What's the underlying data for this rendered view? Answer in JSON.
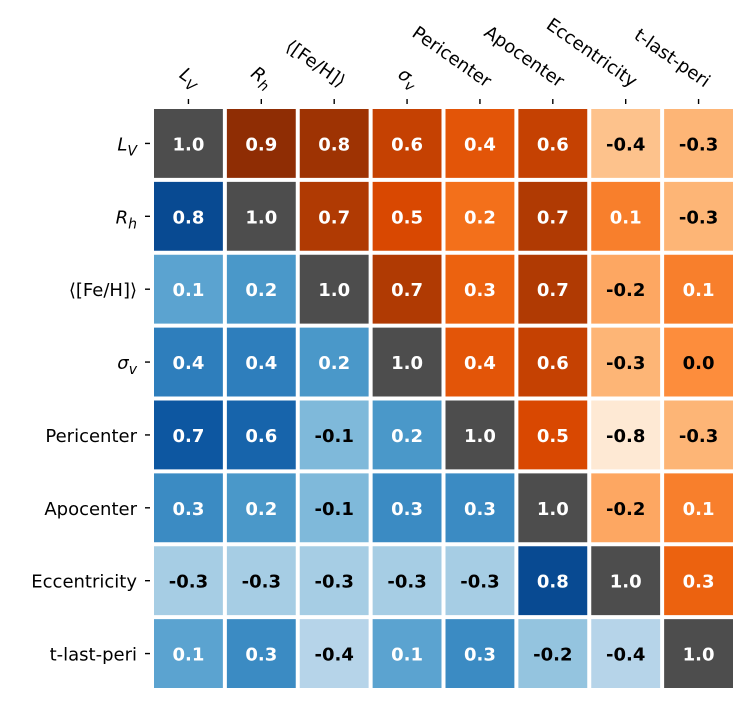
{
  "chart_data": {
    "type": "heatmap",
    "title": "",
    "labels": [
      {
        "main": "L",
        "sub": "V"
      },
      {
        "main": "R",
        "sub": "h"
      },
      {
        "main": "⟨[Fe/H]⟩",
        "sub": ""
      },
      {
        "main": "σ",
        "sub": "v"
      },
      {
        "main": "Pericenter",
        "sub": ""
      },
      {
        "main": "Apocenter",
        "sub": ""
      },
      {
        "main": "Eccentricity",
        "sub": ""
      },
      {
        "main": "t-last-peri",
        "sub": ""
      }
    ],
    "cells": [
      [
        "1.0",
        "0.9",
        "0.8",
        "0.6",
        "0.4",
        "0.6",
        "-0.4",
        "-0.3"
      ],
      [
        "0.8",
        "1.0",
        "0.7",
        "0.5",
        "0.2",
        "0.7",
        "0.1",
        "-0.3"
      ],
      [
        "0.1",
        "0.2",
        "1.0",
        "0.7",
        "0.3",
        "0.7",
        "-0.2",
        "0.1"
      ],
      [
        "0.4",
        "0.4",
        "0.2",
        "1.0",
        "0.4",
        "0.6",
        "-0.3",
        "0.0"
      ],
      [
        "0.7",
        "0.6",
        "-0.1",
        "0.2",
        "1.0",
        "0.5",
        "-0.8",
        "-0.3"
      ],
      [
        "0.3",
        "0.2",
        "-0.1",
        "0.3",
        "0.3",
        "1.0",
        "-0.2",
        "0.1"
      ],
      [
        "-0.3",
        "-0.3",
        "-0.3",
        "-0.3",
        "-0.3",
        "0.8",
        "1.0",
        "0.3"
      ],
      [
        "0.1",
        "0.3",
        "-0.4",
        "0.1",
        "0.3",
        "-0.2",
        "-0.4",
        "1.0"
      ]
    ],
    "upper_triangle": "orange colormap",
    "lower_triangle": "blue colormap",
    "diagonal": "dark gray",
    "value_range": [
      -1,
      1
    ]
  },
  "colors": {
    "diagonal": "#4d4d4d",
    "text_light": "#ffffff",
    "text_dark": "#000000",
    "axis": "#000000",
    "orange_scale": [
      "#fff5eb",
      "#fee6ce",
      "#fdd0a2",
      "#fdae6b",
      "#fd8d3c",
      "#f16913",
      "#d94801",
      "#a63603",
      "#7f2704"
    ],
    "blue_scale": [
      "#f7fbff",
      "#deebf7",
      "#c6dbef",
      "#9ecae1",
      "#6baed6",
      "#4292c6",
      "#2171b5",
      "#08519c",
      "#08306b"
    ]
  }
}
